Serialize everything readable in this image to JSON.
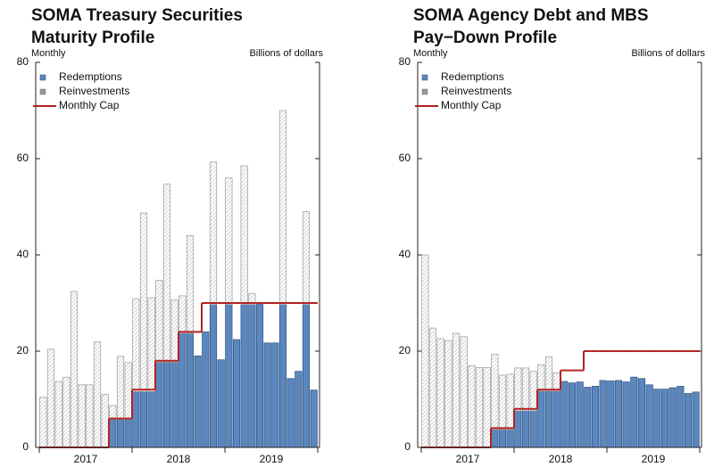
{
  "chart_data": [
    {
      "type": "bar",
      "stacked": true,
      "title": [
        "SOMA Treasury Securities",
        "Maturity Profile"
      ],
      "subtitle": "Monthly",
      "ylabel": "Billions of dollars",
      "years": [
        "2017",
        "2018",
        "2019"
      ],
      "ylim": [
        0,
        80
      ],
      "yticks": [
        0,
        20,
        40,
        60,
        80
      ],
      "series": [
        {
          "name": "Redemptions",
          "color": "#5b87bf",
          "values": [
            0,
            0,
            0,
            0,
            0,
            0,
            0,
            0,
            0,
            5.8,
            5.8,
            5.8,
            11.6,
            11.6,
            11.6,
            17.7,
            17.7,
            17.7,
            23.7,
            23.7,
            19,
            24,
            29.7,
            18.2,
            29.7,
            22.4,
            29.7,
            29.7,
            29.7,
            21.7,
            21.7,
            29.7,
            14.3,
            15.8,
            29.7,
            11.9
          ]
        },
        {
          "name": "Reinvestments",
          "color": "#999999",
          "values": [
            10.4,
            20.4,
            13.7,
            14.6,
            32.4,
            13,
            13,
            21.9,
            11,
            2.9,
            13.1,
            11.8,
            19.3,
            37.1,
            19.5,
            17,
            37,
            12.9,
            7.8,
            20.3,
            0,
            0,
            29.6,
            0,
            26.3,
            0,
            28.8,
            2.3,
            0,
            0,
            0,
            40.3,
            0,
            0,
            19.3,
            0
          ]
        },
        {
          "name": "Monthly Cap",
          "type": "line",
          "color": "#b22222",
          "values": [
            0,
            0,
            0,
            0,
            0,
            0,
            0,
            0,
            0,
            6,
            6,
            6,
            12,
            12,
            12,
            18,
            18,
            18,
            24,
            24,
            24,
            30,
            30,
            30,
            30,
            30,
            30,
            30,
            30,
            30,
            30,
            30,
            30,
            30,
            30,
            30
          ]
        }
      ]
    },
    {
      "type": "bar",
      "stacked": true,
      "title": [
        "SOMA Agency Debt and MBS",
        "Pay−Down Profile"
      ],
      "subtitle": "Monthly",
      "ylabel": "Billions of dollars",
      "years": [
        "2017",
        "2018",
        "2019"
      ],
      "ylim": [
        0,
        80
      ],
      "yticks": [
        0,
        20,
        40,
        60,
        80
      ],
      "series": [
        {
          "name": "Redemptions",
          "color": "#5b87bf",
          "values": [
            0,
            0,
            0,
            0,
            0,
            0,
            0,
            0,
            0,
            3.7,
            3.7,
            3.7,
            7.6,
            7.6,
            7.6,
            11.7,
            11.7,
            11.7,
            13.7,
            13.4,
            13.6,
            12.5,
            12.7,
            13.9,
            13.8,
            13.9,
            13.6,
            14.6,
            14.3,
            13,
            12.1,
            12.1,
            12.4,
            12.7,
            11.2,
            11.5
          ]
        },
        {
          "name": "Reinvestments",
          "color": "#999999",
          "values": [
            40,
            24.8,
            22.6,
            22.2,
            23.7,
            23,
            17,
            16.6,
            16.6,
            15.6,
            11.3,
            11.5,
            8.9,
            8.9,
            8.2,
            5.5,
            7.1,
            3.8,
            0,
            0,
            0,
            0,
            0,
            0,
            0,
            0,
            0,
            0,
            0,
            0,
            0,
            0,
            0,
            0,
            0,
            0
          ]
        },
        {
          "name": "Monthly Cap",
          "type": "line",
          "color": "#b22222",
          "values": [
            0,
            0,
            0,
            0,
            0,
            0,
            0,
            0,
            0,
            4,
            4,
            4,
            8,
            8,
            8,
            12,
            12,
            12,
            16,
            16,
            16,
            20,
            20,
            20,
            20,
            20,
            20,
            20,
            20,
            20,
            20,
            20,
            20,
            20,
            20,
            20
          ]
        }
      ]
    }
  ]
}
